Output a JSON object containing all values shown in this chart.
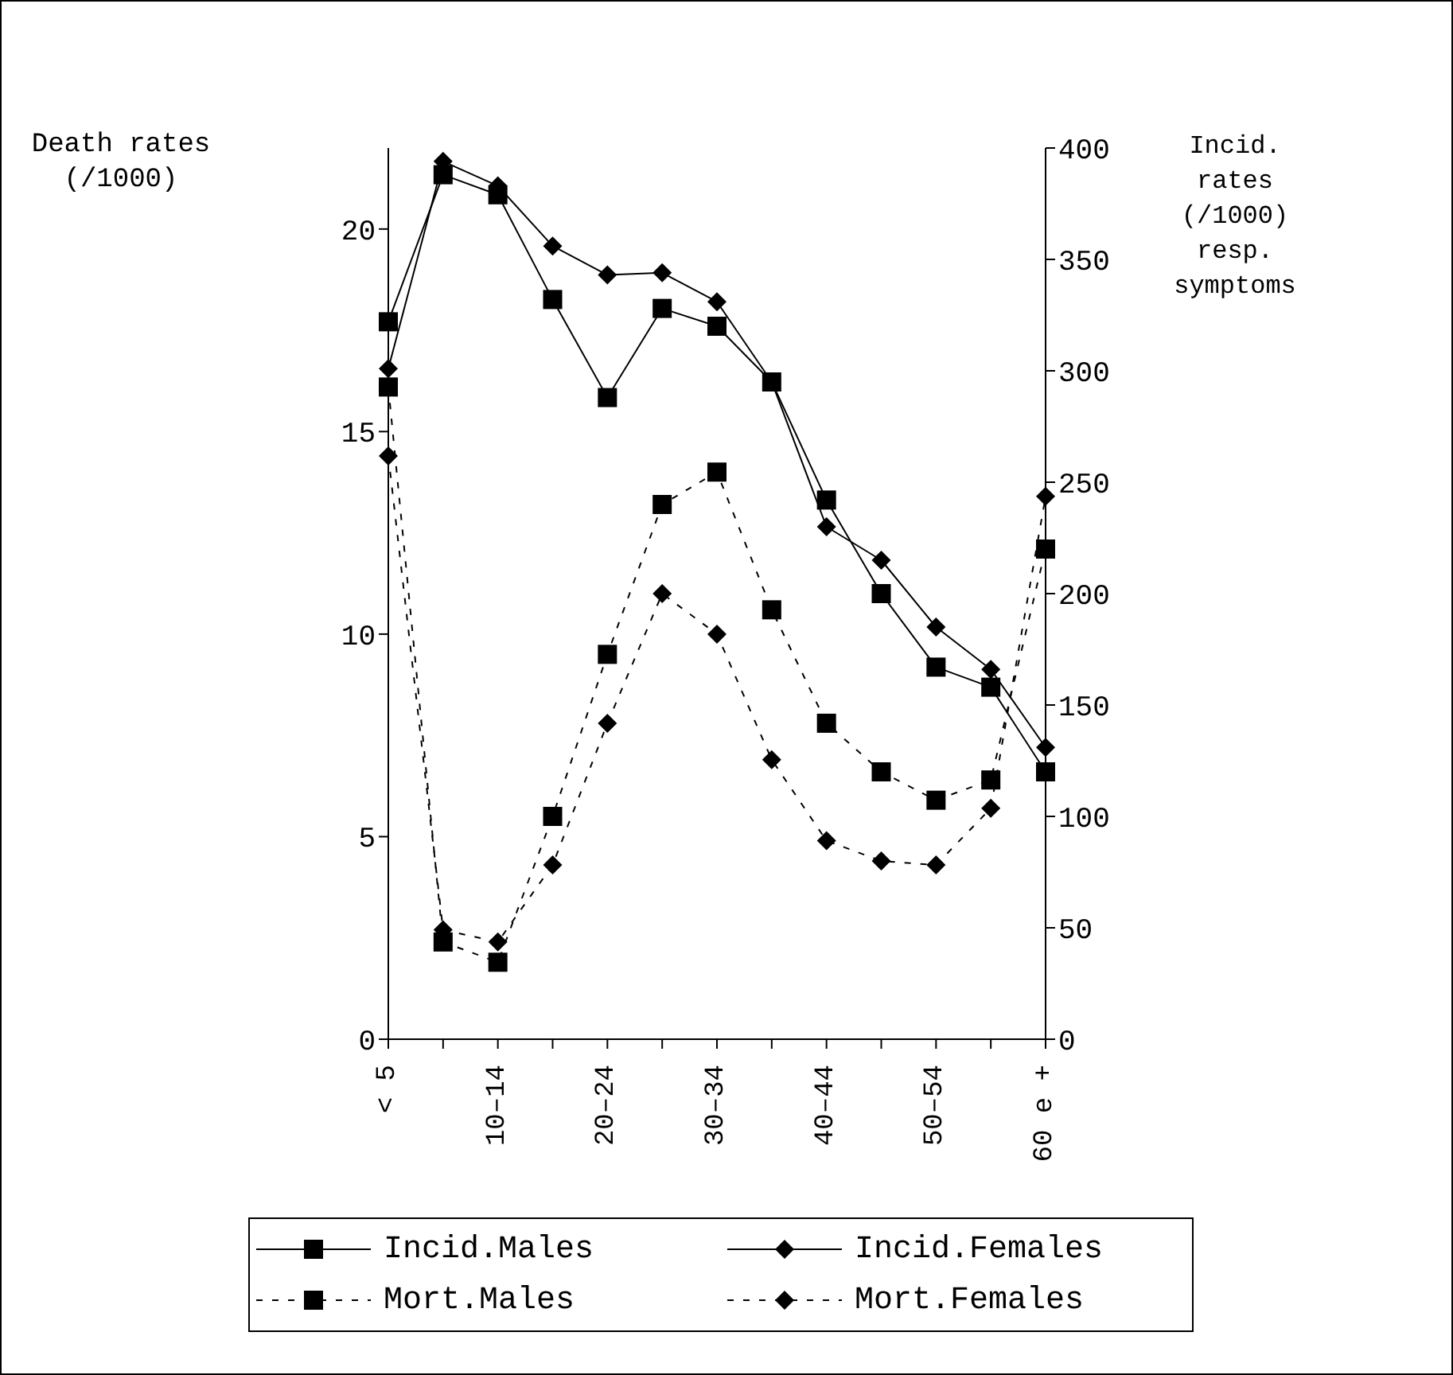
{
  "chart_data": {
    "type": "line",
    "ylabel": "Death rates (/1000)",
    "y2label": "Incid. rates (/1000) resp. symptoms",
    "categories": [
      "< 5",
      null,
      "10–14",
      null,
      "20–24",
      null,
      "30–34",
      null,
      "40–44",
      null,
      "50–54",
      null,
      "60 e +"
    ],
    "ylim": [
      0,
      22
    ],
    "yticks": [
      0,
      5,
      10,
      15,
      20
    ],
    "y2lim": [
      0,
      400
    ],
    "y2ticks": [
      0,
      50,
      100,
      150,
      200,
      250,
      300,
      350,
      400
    ],
    "legend": "bottom",
    "series": [
      {
        "name": "Incid.Males",
        "color": "#000000",
        "axis": "y2",
        "marker": "square",
        "line_style": "solid",
        "values": [
          322,
          388,
          379,
          332,
          288,
          328,
          320,
          295,
          242,
          200,
          167,
          158,
          120
        ]
      },
      {
        "name": "Incid.Females",
        "color": "#000000",
        "axis": "y2",
        "marker": "diamond",
        "line_style": "solid",
        "values": [
          301,
          394,
          383,
          356,
          343,
          344,
          331,
          295,
          230,
          215,
          185,
          166,
          131
        ]
      },
      {
        "name": "Mort.Males",
        "color": "#000000",
        "marker": "square",
        "line_style": "dashed",
        "values": [
          16.1,
          2.4,
          1.9,
          5.5,
          9.5,
          13.2,
          14.0,
          10.6,
          7.8,
          6.6,
          5.9,
          6.4,
          12.1
        ]
      },
      {
        "name": "Mort.Females",
        "color": "#000000",
        "marker": "diamond",
        "line_style": "dashed",
        "values": [
          14.4,
          2.7,
          2.4,
          4.3,
          7.8,
          11.0,
          10.0,
          6.9,
          4.9,
          4.4,
          4.3,
          5.7,
          13.4
        ]
      }
    ]
  }
}
